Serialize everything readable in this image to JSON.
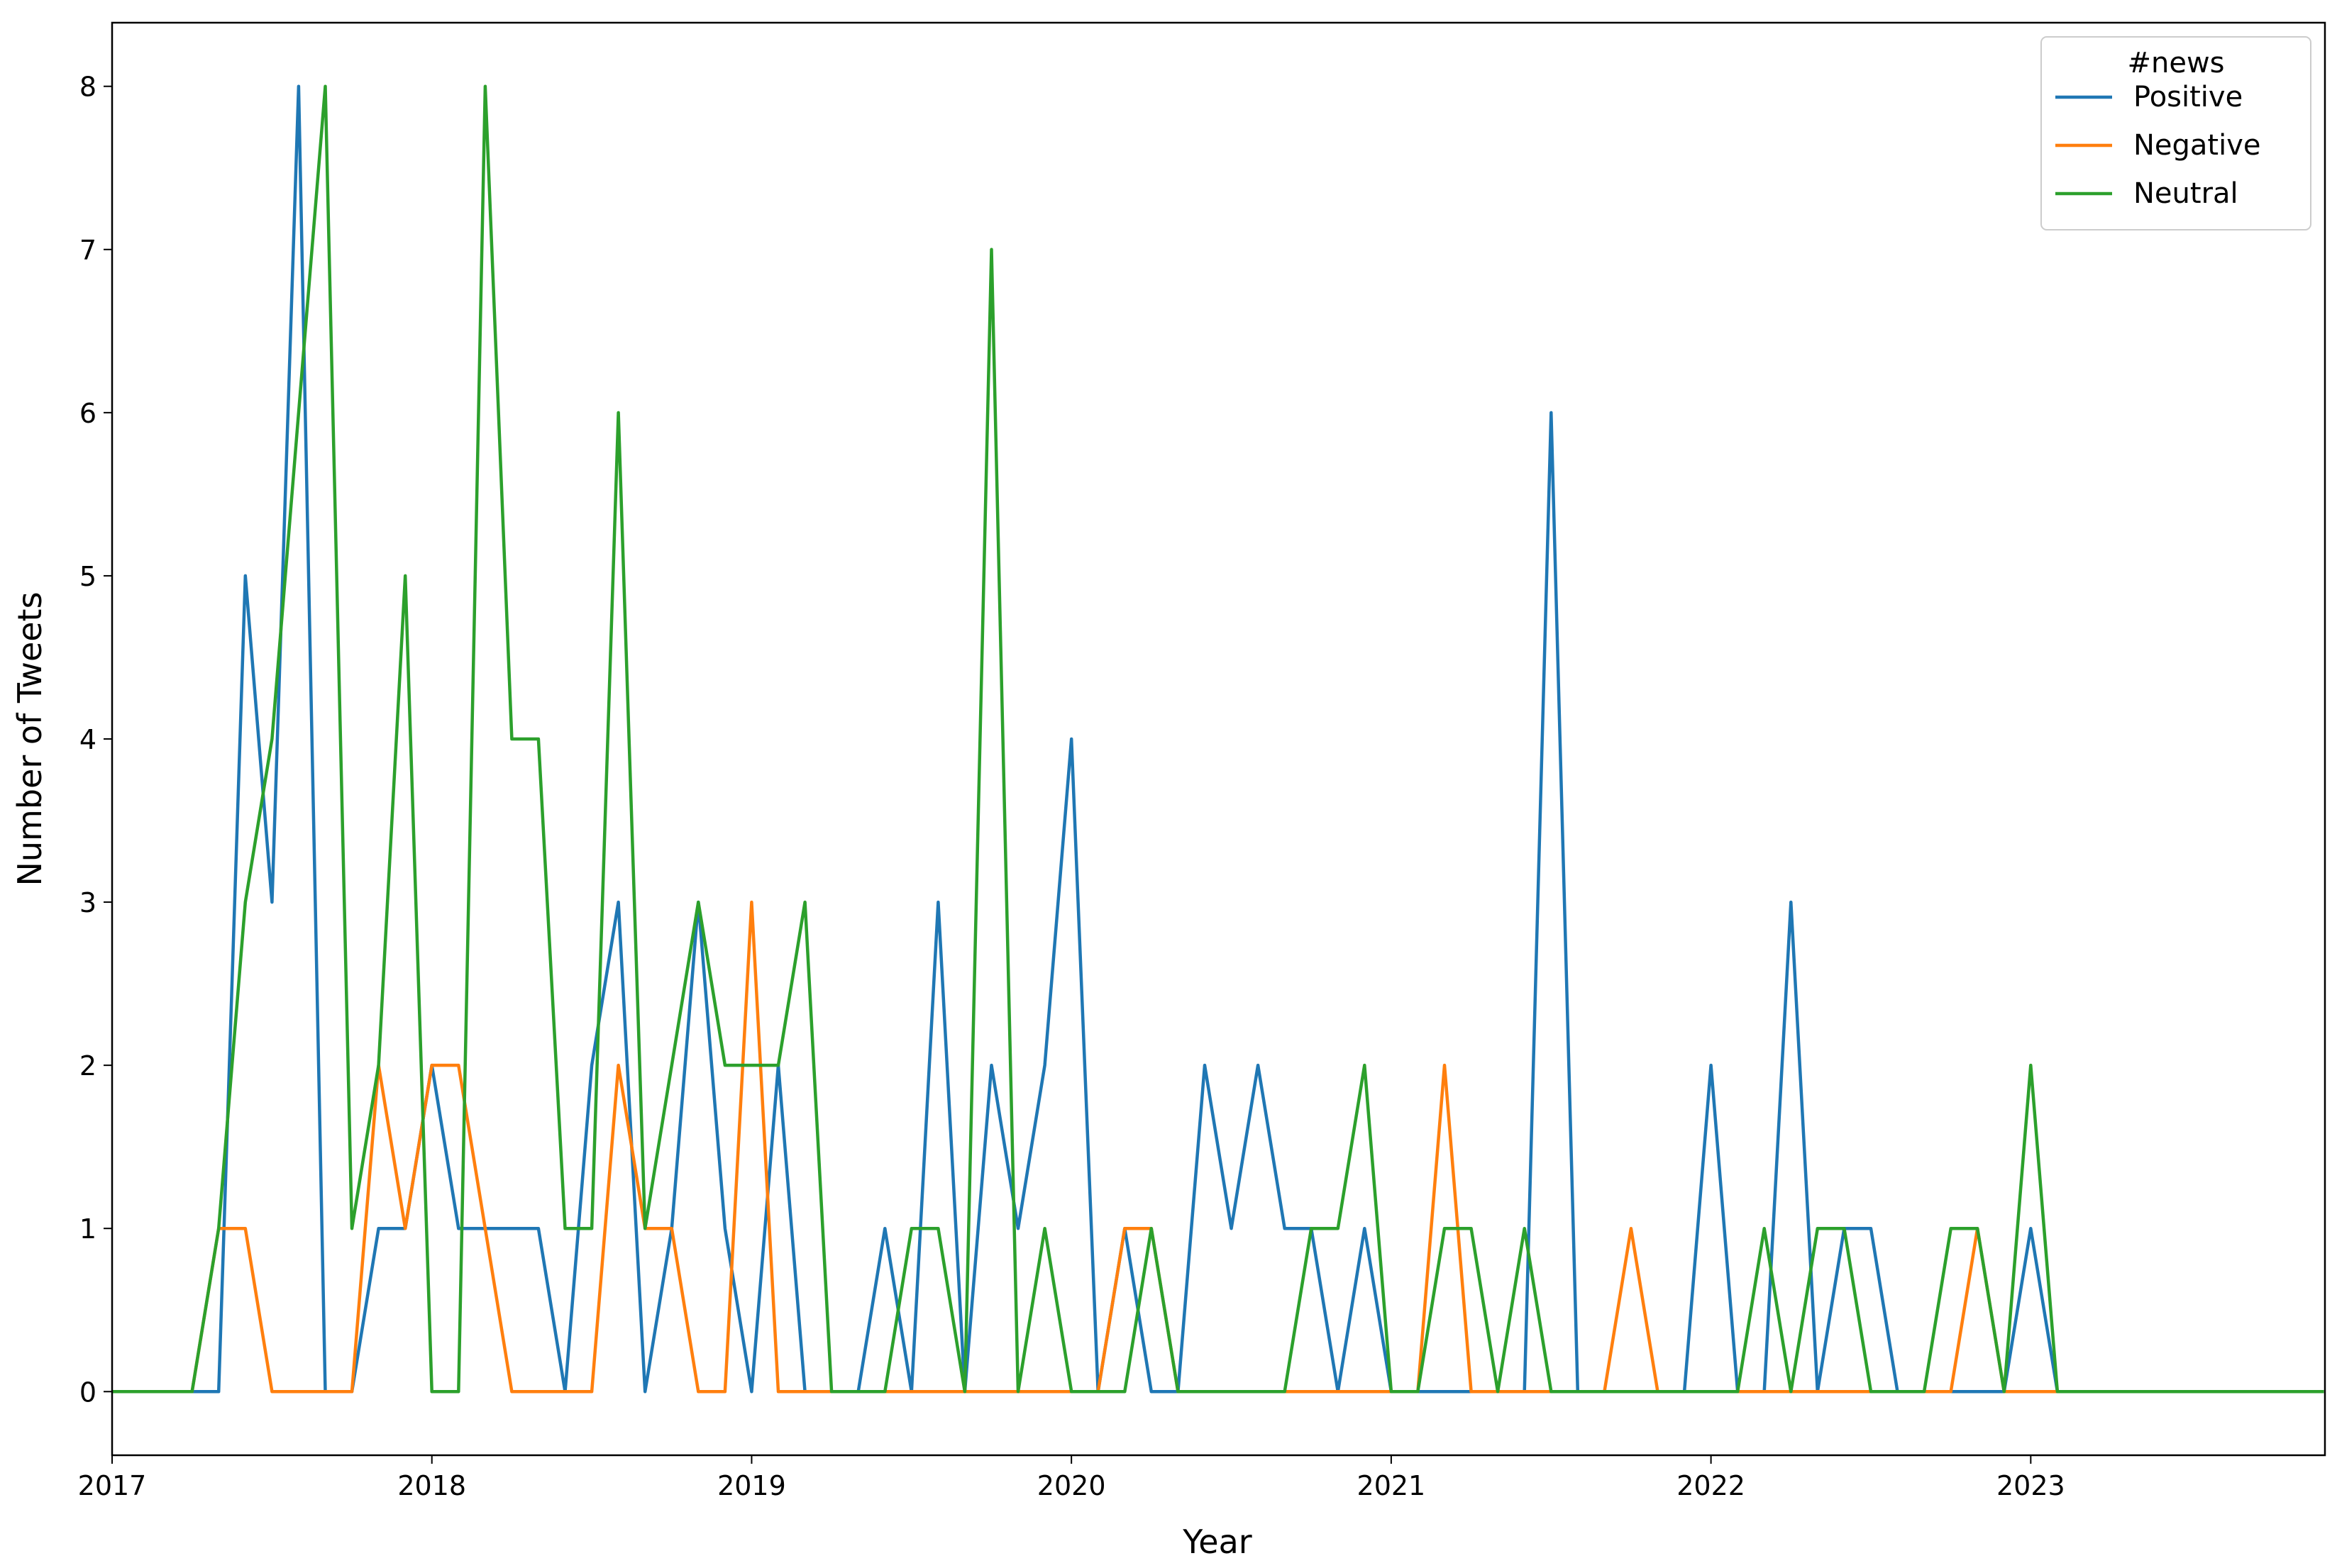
{
  "chart_data": {
    "type": "line",
    "xlabel": "Year",
    "ylabel": "Number of Tweets",
    "x": [
      2017,
      2017.0833,
      2017.1667,
      2017.25,
      2017.3333,
      2017.4167,
      2017.5,
      2017.5833,
      2017.6667,
      2017.75,
      2017.8333,
      2017.9167,
      2018,
      2018.0833,
      2018.1667,
      2018.25,
      2018.3333,
      2018.4167,
      2018.5,
      2018.5833,
      2018.6667,
      2018.75,
      2018.8333,
      2018.9167,
      2019,
      2019.0833,
      2019.1667,
      2019.25,
      2019.3333,
      2019.4167,
      2019.5,
      2019.5833,
      2019.6667,
      2019.75,
      2019.8333,
      2019.9167,
      2020,
      2020.0833,
      2020.1667,
      2020.25,
      2020.3333,
      2020.4167,
      2020.5,
      2020.5833,
      2020.6667,
      2020.75,
      2020.8333,
      2020.9167,
      2021,
      2021.0833,
      2021.1667,
      2021.25,
      2021.3333,
      2021.4167,
      2021.5,
      2021.5833,
      2021.6667,
      2021.75,
      2021.8333,
      2021.9167,
      2022,
      2022.0833,
      2022.1667,
      2022.25,
      2022.3333,
      2022.4167,
      2022.5,
      2022.5833,
      2022.6667,
      2022.75,
      2022.8333,
      2022.9167,
      2023,
      2023.0833,
      2023.1667,
      2023.25,
      2023.3333,
      2023.4167,
      2023.5,
      2023.5833,
      2023.6667,
      2023.75,
      2023.8333,
      2023.9167
    ],
    "series": [
      {
        "name": "Positive",
        "color": "#1f77b4",
        "values": [
          0,
          0,
          0,
          0,
          0,
          5,
          3,
          8,
          0,
          0,
          1,
          1,
          2,
          1,
          1,
          1,
          1,
          0,
          2,
          3,
          0,
          1,
          3,
          1,
          0,
          2,
          0,
          0,
          0,
          1,
          0,
          3,
          0,
          2,
          1,
          2,
          4,
          0,
          1,
          0,
          0,
          2,
          1,
          2,
          1,
          1,
          0,
          1,
          0,
          0,
          0,
          0,
          0,
          0,
          6,
          0,
          0,
          0,
          0,
          0,
          2,
          0,
          0,
          3,
          0,
          1,
          1,
          0,
          0,
          0,
          0,
          0,
          1,
          0,
          0,
          0,
          0,
          0,
          0,
          0,
          0,
          0,
          0,
          0
        ]
      },
      {
        "name": "Negative",
        "color": "#ff7f0e",
        "values": [
          0,
          0,
          0,
          0,
          1,
          1,
          0,
          0,
          0,
          0,
          2,
          1,
          2,
          2,
          1,
          0,
          0,
          0,
          0,
          2,
          1,
          1,
          0,
          0,
          3,
          0,
          0,
          0,
          0,
          0,
          0,
          0,
          0,
          0,
          0,
          0,
          0,
          0,
          1,
          1,
          0,
          0,
          0,
          0,
          0,
          0,
          0,
          0,
          0,
          0,
          2,
          0,
          0,
          0,
          0,
          0,
          0,
          1,
          0,
          0,
          0,
          0,
          0,
          0,
          0,
          0,
          0,
          0,
          0,
          0,
          1,
          0,
          0,
          0,
          0,
          0,
          0,
          0,
          0,
          0,
          0,
          0,
          0,
          0
        ]
      },
      {
        "name": "Neutral",
        "color": "#2ca02c",
        "values": [
          0,
          0,
          0,
          0,
          1,
          3,
          4,
          6,
          8,
          1,
          2,
          5,
          0,
          0,
          8,
          4,
          4,
          1,
          1,
          6,
          1,
          2,
          3,
          2,
          2,
          2,
          3,
          0,
          0,
          0,
          1,
          1,
          0,
          7,
          0,
          1,
          0,
          0,
          0,
          1,
          0,
          0,
          0,
          0,
          0,
          1,
          1,
          2,
          0,
          0,
          1,
          1,
          0,
          1,
          0,
          0,
          0,
          0,
          0,
          0,
          0,
          0,
          1,
          0,
          1,
          1,
          0,
          0,
          0,
          1,
          1,
          0,
          2,
          0,
          0,
          0,
          0,
          0,
          0,
          0,
          0,
          0,
          0,
          0
        ]
      }
    ],
    "legend_title": "#news",
    "legend": "upper right",
    "xlim": [
      2017,
      2023.92
    ],
    "xticks": [
      2017,
      2018,
      2019,
      2020,
      2021,
      2022,
      2023
    ],
    "ylim": [
      -0.39,
      8.39
    ],
    "yticks": [
      0,
      1,
      2,
      3,
      4,
      5,
      6,
      7,
      8
    ],
    "grid": false
  }
}
